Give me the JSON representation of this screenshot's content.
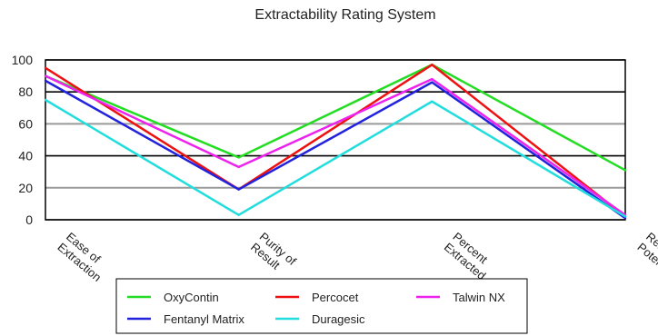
{
  "chart_data": {
    "type": "line",
    "title": "Extractability Rating System",
    "categories": [
      "Ease of\nExtraction",
      "Purity of\nResult",
      "Percent\nExtracted",
      "Relative\nPotency"
    ],
    "ylim": [
      0,
      100
    ],
    "yticks": [
      0,
      20,
      40,
      60,
      80,
      100
    ],
    "grid": true,
    "legend_position": "bottom",
    "series": [
      {
        "name": "OxyContin",
        "color": "#22dd22",
        "values": [
          90,
          39,
          97,
          31
        ]
      },
      {
        "name": "Percocet",
        "color": "#ee1111",
        "values": [
          95,
          19,
          97,
          2
        ]
      },
      {
        "name": "Talwin NX",
        "color": "#ee22ee",
        "values": [
          90,
          33,
          88,
          3
        ]
      },
      {
        "name": "Fentanyl Matrix",
        "color": "#2222dd",
        "values": [
          87,
          19,
          86,
          1
        ]
      },
      {
        "name": "Duragesic",
        "color": "#22dddd",
        "values": [
          75,
          3,
          74,
          2
        ]
      }
    ]
  }
}
